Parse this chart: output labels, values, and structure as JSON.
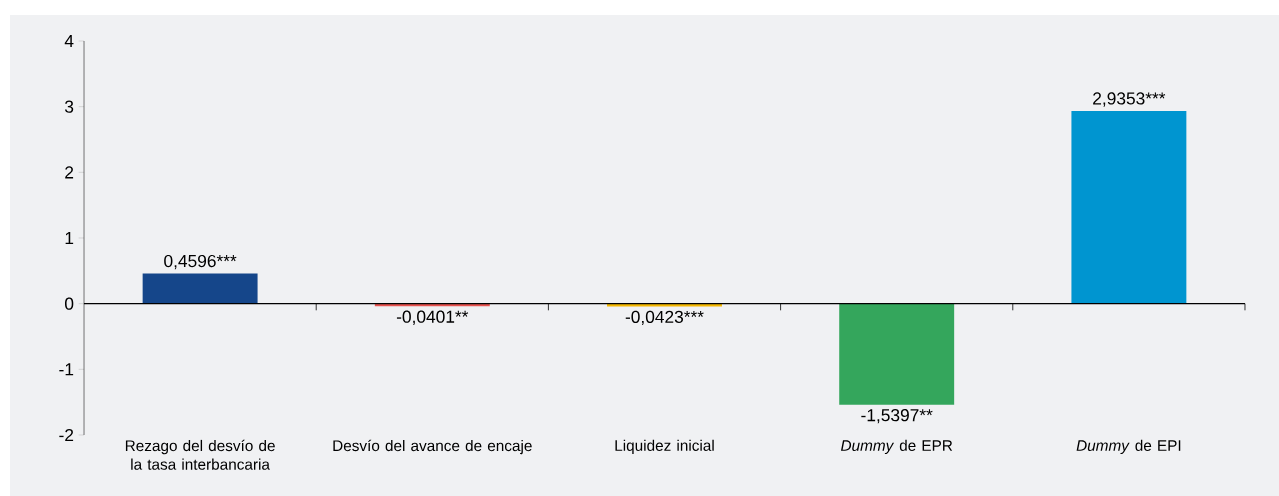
{
  "chart_data": {
    "type": "bar",
    "categories": [
      "Rezago del desvío de la tasa interbancaria",
      "Desvío del avance de encaje",
      "Liquidez inicial",
      "*Dummy* de EPR",
      "*Dummy* de EPI"
    ],
    "values": [
      0.4596,
      -0.0401,
      -0.0423,
      -1.5397,
      2.9353
    ],
    "colors": [
      "#15468a",
      "#e8534f",
      "#f5b800",
      "#34a65c",
      "#0095d0"
    ],
    "value_labels": [
      "0,4596***",
      "-0,0401**",
      "-0,0423***",
      "-1,5397**",
      "2,9353***"
    ],
    "ylim": [
      -2,
      4
    ],
    "yticks": [
      -2,
      -1,
      0,
      1,
      2,
      3,
      4
    ]
  }
}
